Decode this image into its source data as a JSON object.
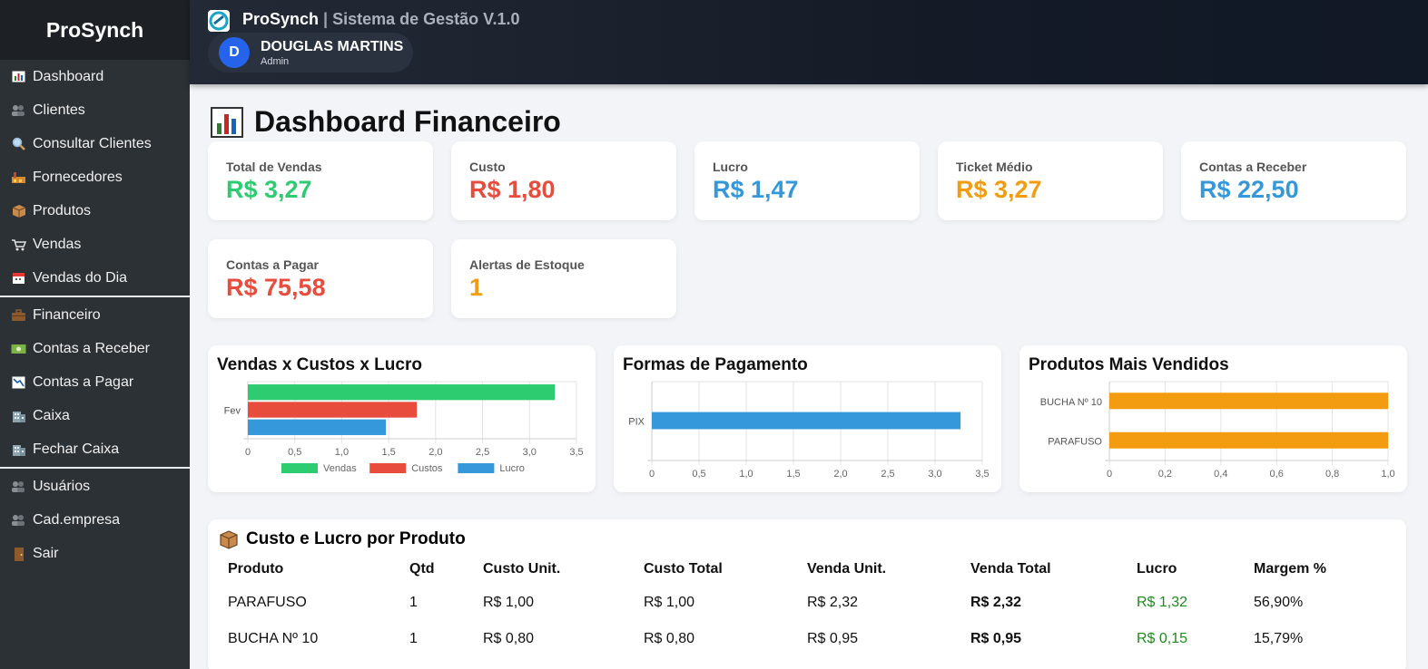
{
  "brand": "ProSynch",
  "header": {
    "app_name": "ProSynch",
    "separator": " | ",
    "subtitle": "Sistema de Gestão V.1.0",
    "user_initial": "D",
    "user_name": "DOUGLAS MARTINS",
    "user_role": "Admin"
  },
  "sidebar": {
    "items": [
      {
        "label": "Dashboard",
        "icon": "chart-icon"
      },
      {
        "label": "Clientes",
        "icon": "people-icon"
      },
      {
        "label": "Consultar Clientes",
        "icon": "search-icon"
      },
      {
        "label": "Fornecedores",
        "icon": "factory-icon"
      },
      {
        "label": "Produtos",
        "icon": "box-icon"
      },
      {
        "label": "Vendas",
        "icon": "cart-icon"
      },
      {
        "label": "Vendas do Dia",
        "icon": "calendar-icon"
      },
      {
        "label": "Financeiro",
        "icon": "briefcase-icon"
      },
      {
        "label": "Contas a Receber",
        "icon": "money-icon"
      },
      {
        "label": "Contas a Pagar",
        "icon": "chart-down-icon"
      },
      {
        "label": "Caixa",
        "icon": "building-icon"
      },
      {
        "label": "Fechar Caixa",
        "icon": "building-icon"
      },
      {
        "label": "Usuários",
        "icon": "people-icon"
      },
      {
        "label": "Cad.empresa",
        "icon": "people-icon"
      },
      {
        "label": "Sair",
        "icon": "door-icon"
      }
    ]
  },
  "page_title": "Dashboard Financeiro",
  "kpis": [
    {
      "label": "Total de Vendas",
      "value": "R$ 3,27",
      "color": "#2ecc71"
    },
    {
      "label": "Custo",
      "value": "R$ 1,80",
      "color": "#e74c3c"
    },
    {
      "label": "Lucro",
      "value": "R$ 1,47",
      "color": "#3498db"
    },
    {
      "label": "Ticket Médio",
      "value": "R$ 3,27",
      "color": "#f39c12"
    },
    {
      "label": "Contas a Receber",
      "value": "R$ 22,50",
      "color": "#3498db"
    },
    {
      "label": "Contas a Pagar",
      "value": "R$ 75,58",
      "color": "#e74c3c"
    },
    {
      "label": "Alertas de Estoque",
      "value": "1",
      "color": "#f39c12"
    }
  ],
  "chart_data": [
    {
      "type": "bar",
      "orientation": "horizontal",
      "title": "Vendas x Custos x Lucro",
      "categories": [
        "Fev"
      ],
      "series": [
        {
          "name": "Vendas",
          "values": [
            3.27
          ],
          "color": "#2ecc71"
        },
        {
          "name": "Custos",
          "values": [
            1.8
          ],
          "color": "#e74c3c"
        },
        {
          "name": "Lucro",
          "values": [
            1.47
          ],
          "color": "#3498db"
        }
      ],
      "xlim": [
        0,
        3.5
      ],
      "ticks": [
        "0",
        "0,5",
        "1,0",
        "1,5",
        "2,0",
        "2,5",
        "3,0",
        "3,5"
      ],
      "legend": "bottom"
    },
    {
      "type": "bar",
      "orientation": "horizontal",
      "title": "Formas de Pagamento",
      "categories": [
        "PIX"
      ],
      "series": [
        {
          "values": [
            3.27
          ],
          "color": "#3498db"
        }
      ],
      "xlim": [
        0,
        3.5
      ],
      "ticks": [
        "0",
        "0,5",
        "1,0",
        "1,5",
        "2,0",
        "2,5",
        "3,0",
        "3,5"
      ]
    },
    {
      "type": "bar",
      "orientation": "horizontal",
      "title": "Produtos Mais Vendidos",
      "categories": [
        "BUCHA Nº 10",
        "PARAFUSO"
      ],
      "series": [
        {
          "values": [
            1,
            1
          ],
          "color": "#f39c12"
        }
      ],
      "xlim": [
        0,
        1.0
      ],
      "ticks": [
        "0",
        "0,2",
        "0,4",
        "0,6",
        "0,8",
        "1,0"
      ]
    }
  ],
  "table": {
    "title": "Custo e Lucro por Produto",
    "headers": [
      "Produto",
      "Qtd",
      "Custo Unit.",
      "Custo Total",
      "Venda Unit.",
      "Venda Total",
      "Lucro",
      "Margem %"
    ],
    "rows": [
      [
        "PARAFUSO",
        "1",
        "R$ 1,00",
        "R$ 1,00",
        "R$ 2,32",
        "R$ 2,32",
        "R$ 1,32",
        "56,90%"
      ],
      [
        "BUCHA Nº 10",
        "1",
        "R$ 0,80",
        "R$ 0,80",
        "R$ 0,95",
        "R$ 0,95",
        "R$ 0,15",
        "15,79%"
      ]
    ],
    "profit_color": "#1e8a1e"
  }
}
